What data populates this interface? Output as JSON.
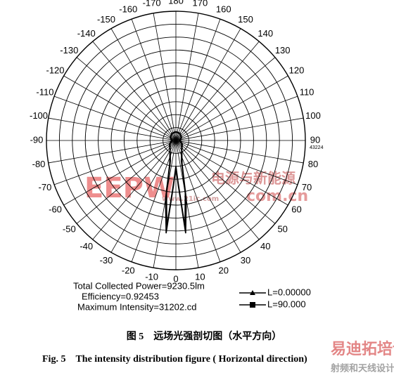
{
  "chart_data": {
    "type": "polar",
    "angle_ticks": [
      -170,
      -160,
      -150,
      -140,
      -130,
      -120,
      -110,
      -100,
      -90,
      -80,
      -70,
      -60,
      -50,
      -40,
      -30,
      -20,
      -10,
      0,
      10,
      20,
      30,
      40,
      50,
      60,
      70,
      80,
      90,
      100,
      110,
      120,
      130,
      140,
      150,
      160,
      170,
      180
    ],
    "rlim": [
      0,
      43224
    ],
    "series": [
      {
        "name": "L=0.00000",
        "color": "#000000",
        "marker": "triangle",
        "angles": [
          -180,
          -150,
          -120,
          -90,
          -60,
          -30,
          -15,
          -10,
          -6,
          -3,
          0,
          3,
          6,
          10,
          15,
          30,
          60,
          90,
          120,
          150,
          180
        ],
        "values": [
          3000,
          2800,
          2200,
          1500,
          2500,
          4000,
          8000,
          20000,
          31202,
          15000,
          9000,
          15000,
          31202,
          20000,
          8000,
          4000,
          2500,
          1500,
          2200,
          2800,
          3000
        ]
      },
      {
        "name": "L=90.000",
        "color": "#000000",
        "marker": "square",
        "angles": [
          -180,
          -150,
          -120,
          -90,
          -60,
          -30,
          -15,
          -10,
          -6,
          -3,
          0,
          3,
          6,
          10,
          15,
          30,
          60,
          90,
          120,
          150,
          180
        ],
        "values": [
          2800,
          2600,
          2000,
          1200,
          2200,
          3800,
          7000,
          18000,
          29000,
          14000,
          8500,
          14000,
          29000,
          18000,
          7000,
          3800,
          2200,
          1200,
          2000,
          2600,
          2800
        ]
      }
    ],
    "annotations": [
      "Total Collected Power=9230.5lm",
      "Efficiency=0.92453",
      "Maximum Intensity=31202.cd"
    ]
  },
  "caption": {
    "zh": "图 5　远场光强剖切图（水平方向）",
    "en": "Fig. 5　The intensity distribution figure ( Horizontal direction)"
  },
  "watermarks": [
    "EEPW",
    "电源与新能源",
    "www.21ic.com",
    "com.cn",
    "易迪拓培训",
    "射频和天线设计专家"
  ]
}
